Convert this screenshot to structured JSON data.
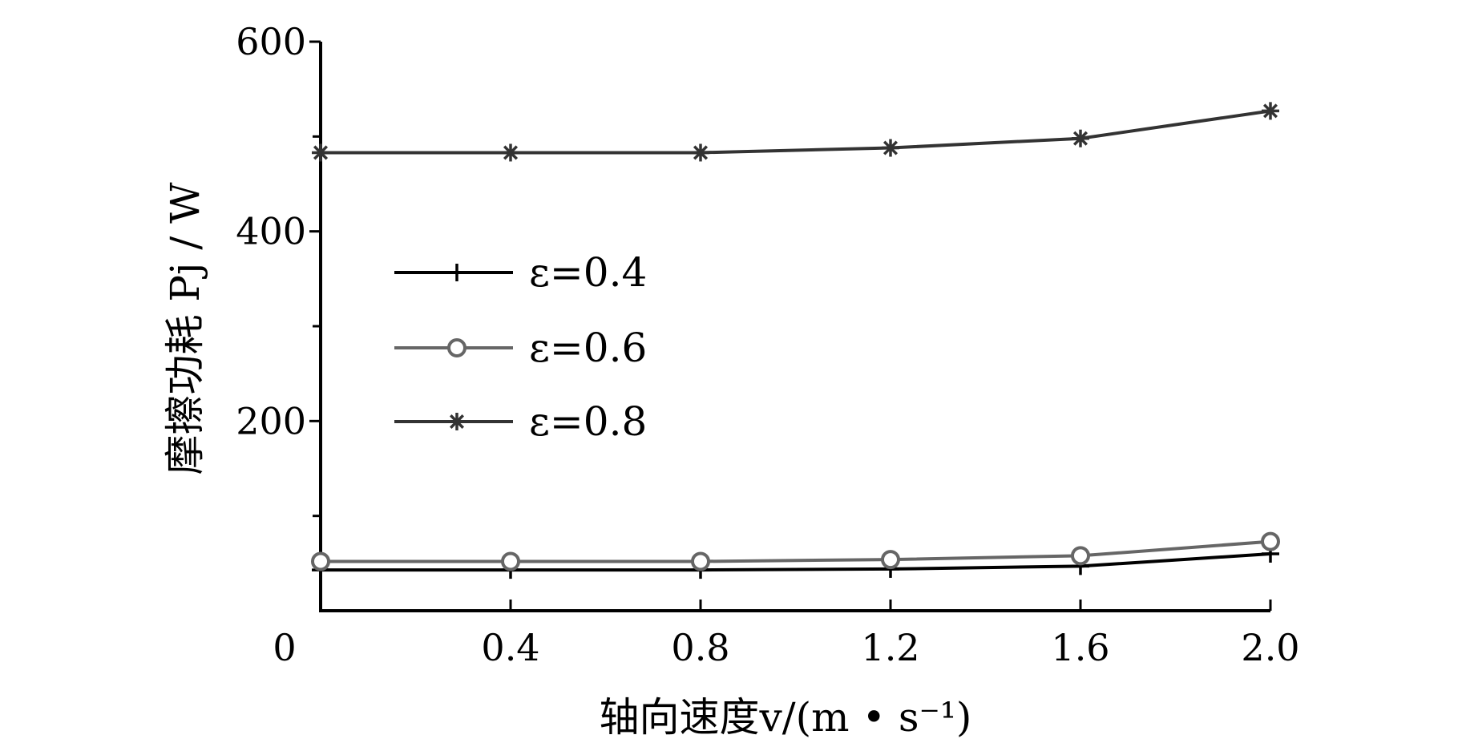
{
  "chart_data": {
    "type": "line",
    "title": "",
    "xlabel": "轴向速度v/(m • s⁻¹)",
    "ylabel": "摩擦功耗 Pj / W",
    "xlim": [
      0,
      2.0
    ],
    "ylim": [
      0,
      600
    ],
    "x_tick_labels": [
      "0",
      "0.4",
      "0.8",
      "1.2",
      "1.6",
      "2.0"
    ],
    "x_tick_values": [
      0,
      0.4,
      0.8,
      1.2,
      1.6,
      2.0
    ],
    "y_tick_labels": [
      "600",
      "400",
      "200"
    ],
    "y_tick_values": [
      600,
      400,
      200
    ],
    "y_minor_ticks": [
      100,
      300,
      500
    ],
    "x": [
      0,
      0.4,
      0.8,
      1.2,
      1.6,
      2.0
    ],
    "series": [
      {
        "name": "ε=0.4",
        "marker": "plus",
        "color": "#000000",
        "values": [
          43,
          43,
          43,
          44,
          47,
          60
        ]
      },
      {
        "name": "ε=0.6",
        "marker": "circle",
        "color": "#666666",
        "values": [
          52,
          52,
          52,
          54,
          58,
          73
        ]
      },
      {
        "name": "ε=0.8",
        "marker": "asterisk",
        "color": "#333333",
        "values": [
          483,
          483,
          483,
          488,
          498,
          527
        ]
      }
    ],
    "grid": false,
    "legend_position": "center-left"
  }
}
